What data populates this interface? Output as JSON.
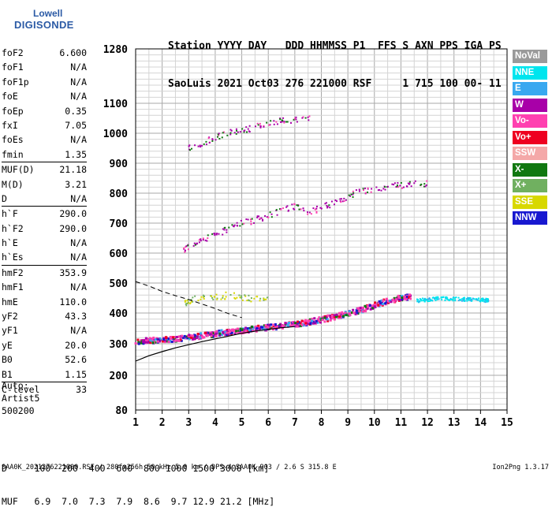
{
  "logo": {
    "line1": "Lowell",
    "line2": "DIGISONDE"
  },
  "header": {
    "line1": "Station YYYY DAY   DDD HHMMSS P1  FFS S AXN PPS IGA PS",
    "line2": "SaoLuis 2021 Oct03 276 221000 RSF     1 715 100 00- 11"
  },
  "params": {
    "group1": [
      {
        "k": "foF2",
        "v": "6.600"
      },
      {
        "k": "foF1",
        "v": "N/A"
      },
      {
        "k": "foF1p",
        "v": "N/A"
      },
      {
        "k": "foE",
        "v": "N/A"
      },
      {
        "k": "foEp",
        "v": "0.35"
      },
      {
        "k": "fxI",
        "v": "7.05"
      },
      {
        "k": "foEs",
        "v": "N/A"
      },
      {
        "k": "fmin",
        "v": "1.35"
      }
    ],
    "group2": [
      {
        "k": "MUF(D)",
        "v": "21.18"
      },
      {
        "k": "M(D)",
        "v": "3.21"
      },
      {
        "k": "D",
        "v": "N/A"
      }
    ],
    "group3": [
      {
        "k": "h`F",
        "v": "290.0"
      },
      {
        "k": "h`F2",
        "v": "290.0"
      },
      {
        "k": "h`E",
        "v": "N/A"
      },
      {
        "k": "h`Es",
        "v": "N/A"
      }
    ],
    "group4": [
      {
        "k": "hmF2",
        "v": "353.9"
      },
      {
        "k": "hmF1",
        "v": "N/A"
      },
      {
        "k": "hmE",
        "v": "110.0"
      },
      {
        "k": "yF2",
        "v": "43.3"
      },
      {
        "k": "yF1",
        "v": "N/A"
      },
      {
        "k": "yE",
        "v": "20.0"
      },
      {
        "k": "B0",
        "v": "52.6"
      },
      {
        "k": "B1",
        "v": "1.15"
      }
    ],
    "group5": [
      {
        "k": "C-level",
        "v": "33"
      }
    ]
  },
  "auto": {
    "line1": "Auto:",
    "line2": "Artist5",
    "line3": "500200"
  },
  "legend": [
    {
      "label": "NoVal",
      "color": "#9a9a9a"
    },
    {
      "label": "NNE",
      "color": "#00e5ee"
    },
    {
      "label": "E",
      "color": "#38a8f0"
    },
    {
      "label": "W",
      "color": "#a800a8"
    },
    {
      "label": "Vo-",
      "color": "#ff40b0"
    },
    {
      "label": "Vo+",
      "color": "#ee0020"
    },
    {
      "label": "SSW",
      "color": "#f4a8a8"
    },
    {
      "label": "X-",
      "color": "#107810"
    },
    {
      "label": "X+",
      "color": "#70b060"
    },
    {
      "label": "SSE",
      "color": "#d8d800"
    },
    {
      "label": "NNW",
      "color": "#1818d0"
    }
  ],
  "footer": {
    "d_line": "D     100  200  400  600  800 1000 1500 3000 [km]",
    "muf_line": "MUF   6.9  7.0  7.3  7.9  8.6  9.7 12.9 21.2 [MHz]",
    "file_line": "SAA0K_2021276221000.RSF / 280fx256h 50 kHz 5.0 km / DPS-4 SAA0K 903 / 2.6 S 315.8 E",
    "version": "Ion2Png 1.3.17"
  },
  "chart_data": {
    "type": "scatter",
    "title": "",
    "xlabel": "",
    "ylabel": "",
    "xlim": [
      1,
      15
    ],
    "ylim": [
      80,
      1280
    ],
    "x_ticks": [
      1,
      2,
      3,
      4,
      5,
      6,
      7,
      8,
      9,
      10,
      11,
      12,
      13,
      14,
      15
    ],
    "y_ticks": [
      80,
      200,
      300,
      400,
      500,
      600,
      700,
      800,
      900,
      1000,
      1100,
      1280
    ],
    "grid": true,
    "legend_position": "right",
    "traces": [
      {
        "name": "O-trace",
        "color": "#ff40b0",
        "points": [
          [
            1.0,
            305
          ],
          [
            1.5,
            310
          ],
          [
            2.0,
            312
          ],
          [
            2.5,
            316
          ],
          [
            3.0,
            320
          ],
          [
            3.5,
            326
          ],
          [
            4.0,
            332
          ],
          [
            4.5,
            338
          ],
          [
            5.0,
            343
          ],
          [
            5.5,
            348
          ],
          [
            6.0,
            353
          ],
          [
            6.5,
            358
          ],
          [
            7.0,
            363
          ],
          [
            7.5,
            370
          ],
          [
            8.0,
            378
          ],
          [
            8.5,
            388
          ],
          [
            9.0,
            398
          ],
          [
            9.5,
            410
          ],
          [
            10.0,
            425
          ],
          [
            10.5,
            440
          ],
          [
            11.0,
            450
          ],
          [
            11.4,
            455
          ]
        ]
      },
      {
        "name": "X-trace",
        "color": "#00e5ee",
        "points": [
          [
            11.6,
            440
          ],
          [
            12.0,
            445
          ],
          [
            12.5,
            448
          ],
          [
            13.0,
            447
          ],
          [
            13.5,
            445
          ],
          [
            14.0,
            443
          ],
          [
            14.3,
            442
          ]
        ]
      },
      {
        "name": "multi-hop 2F",
        "color": "#a800a8",
        "points": [
          [
            2.8,
            610
          ],
          [
            3.0,
            620
          ],
          [
            3.5,
            640
          ],
          [
            4.0,
            660
          ],
          [
            4.5,
            680
          ],
          [
            5.0,
            700
          ],
          [
            5.5,
            710
          ],
          [
            6.0,
            725
          ],
          [
            6.5,
            740
          ],
          [
            7.0,
            755
          ],
          [
            7.5,
            735
          ],
          [
            8.0,
            750
          ],
          [
            8.5,
            770
          ],
          [
            9.0,
            790
          ],
          [
            9.5,
            805
          ],
          [
            10.0,
            815
          ],
          [
            10.5,
            822
          ],
          [
            11.0,
            825
          ],
          [
            11.5,
            830
          ],
          [
            12.0,
            833
          ]
        ]
      },
      {
        "name": "multi-hop 3F",
        "color": "#a800a8",
        "points": [
          [
            3.0,
            950
          ],
          [
            3.5,
            965
          ],
          [
            4.0,
            985
          ],
          [
            4.5,
            1000
          ],
          [
            5.0,
            1010
          ],
          [
            5.5,
            1020
          ],
          [
            6.0,
            1030
          ],
          [
            6.5,
            1040
          ],
          [
            7.0,
            1045
          ],
          [
            7.6,
            1055
          ]
        ]
      },
      {
        "name": "spread",
        "color": "#d8d800",
        "points": [
          [
            2.8,
            430
          ],
          [
            3.0,
            440
          ],
          [
            3.5,
            455
          ],
          [
            4.0,
            450
          ],
          [
            4.5,
            460
          ],
          [
            5.0,
            450
          ],
          [
            5.5,
            445
          ],
          [
            6.0,
            450
          ]
        ]
      }
    ],
    "profile_curve": {
      "points": [
        [
          1.0,
          245
        ],
        [
          1.5,
          262
        ],
        [
          2.0,
          275
        ],
        [
          2.5,
          287
        ],
        [
          3.0,
          297
        ],
        [
          3.5,
          307
        ],
        [
          4.0,
          316
        ],
        [
          4.5,
          325
        ],
        [
          5.0,
          334
        ],
        [
          5.5,
          341
        ],
        [
          6.0,
          347
        ],
        [
          6.5,
          352
        ],
        [
          7.0,
          356
        ]
      ]
    },
    "dashed_curve": {
      "points": [
        [
          1.0,
          505
        ],
        [
          1.5,
          490
        ],
        [
          2.0,
          472
        ],
        [
          2.5,
          458
        ],
        [
          3.0,
          445
        ],
        [
          3.5,
          430
        ],
        [
          4.0,
          415
        ],
        [
          4.5,
          398
        ],
        [
          5.0,
          385
        ]
      ]
    }
  }
}
